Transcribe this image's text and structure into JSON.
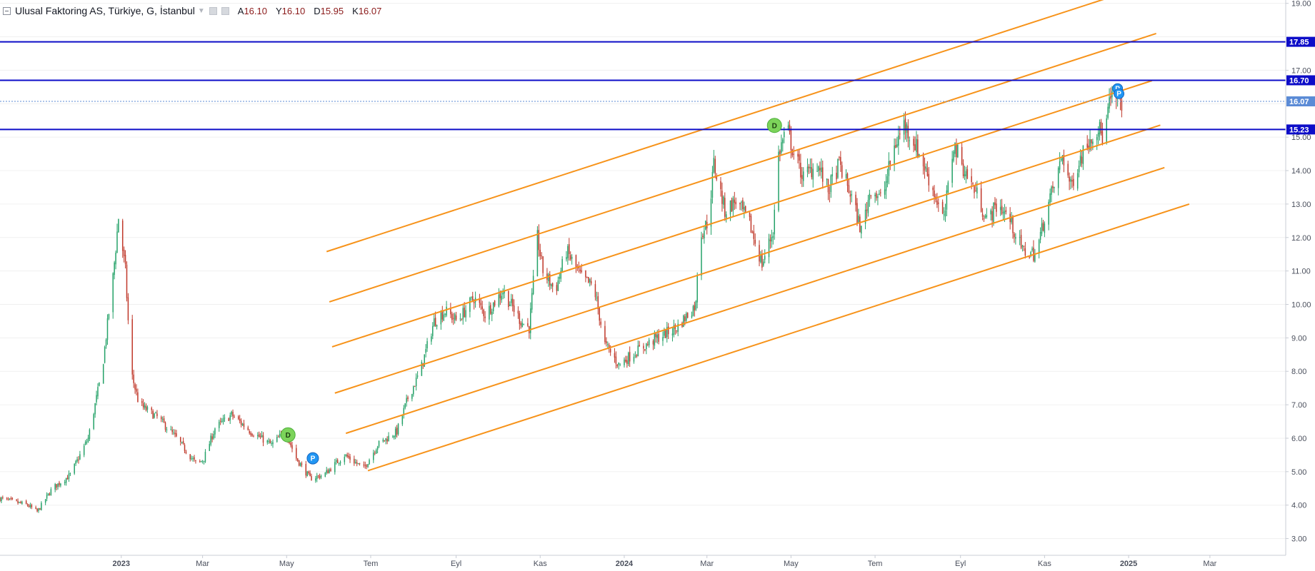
{
  "legend": {
    "symbol": "Ulusal Faktoring AS, Türkiye, G, İstanbul",
    "open_key": "A",
    "open": "16.10",
    "high_key": "Y",
    "high": "16.10",
    "low_key": "D",
    "low": "15.95",
    "close_key": "K",
    "close": "16.07"
  },
  "chart_data": {
    "type": "candlestick",
    "ylim": [
      2.5,
      19.1
    ],
    "y_ticks": [
      "3.00",
      "4.00",
      "5.00",
      "6.00",
      "7.00",
      "8.00",
      "9.00",
      "10.00",
      "11.00",
      "12.00",
      "13.00",
      "14.00",
      "15.00",
      "16.00",
      "17.00",
      "18.00",
      "19.00"
    ],
    "x_range": [
      "2022-10-05",
      "2025-04-25"
    ],
    "x_ticks": [
      {
        "date": "2023-01-01",
        "label": "2023"
      },
      {
        "date": "2023-03-01",
        "label": "Mar"
      },
      {
        "date": "2023-05-01",
        "label": "May"
      },
      {
        "date": "2023-07-01",
        "label": "Tem"
      },
      {
        "date": "2023-09-01",
        "label": "Eyl"
      },
      {
        "date": "2023-11-01",
        "label": "Kas"
      },
      {
        "date": "2024-01-01",
        "label": "2024"
      },
      {
        "date": "2024-03-01",
        "label": "Mar"
      },
      {
        "date": "2024-05-01",
        "label": "May"
      },
      {
        "date": "2024-07-01",
        "label": "Tem"
      },
      {
        "date": "2024-09-01",
        "label": "Eyl"
      },
      {
        "date": "2024-11-01",
        "label": "Kas"
      },
      {
        "date": "2025-01-01",
        "label": "2025"
      },
      {
        "date": "2025-03-01",
        "label": "Mar"
      }
    ],
    "price_path": [
      [
        "2022-10-05",
        4.2
      ],
      [
        "2022-10-25",
        4.0
      ],
      [
        "2022-11-01",
        3.8
      ],
      [
        "2022-11-12",
        4.5
      ],
      [
        "2022-11-25",
        4.9
      ],
      [
        "2022-12-08",
        6.0
      ],
      [
        "2022-12-18",
        8.0
      ],
      [
        "2022-12-26",
        10.8
      ],
      [
        "2022-12-30",
        12.6
      ],
      [
        "2023-01-04",
        11.0
      ],
      [
        "2023-01-08",
        8.0
      ],
      [
        "2023-01-14",
        7.0
      ],
      [
        "2023-01-28",
        6.6
      ],
      [
        "2023-02-10",
        6.0
      ],
      [
        "2023-02-25",
        5.2
      ],
      [
        "2023-03-02",
        5.4
      ],
      [
        "2023-03-10",
        6.3
      ],
      [
        "2023-03-22",
        6.7
      ],
      [
        "2023-04-05",
        6.2
      ],
      [
        "2023-04-20",
        5.8
      ],
      [
        "2023-04-30",
        6.2
      ],
      [
        "2023-05-08",
        5.4
      ],
      [
        "2023-05-18",
        4.8
      ],
      [
        "2023-05-28",
        4.9
      ],
      [
        "2023-06-12",
        5.5
      ],
      [
        "2023-06-26",
        5.1
      ],
      [
        "2023-07-06",
        5.8
      ],
      [
        "2023-07-20",
        6.2
      ],
      [
        "2023-07-28",
        7.2
      ],
      [
        "2023-08-06",
        8.0
      ],
      [
        "2023-08-16",
        9.5
      ],
      [
        "2023-08-24",
        9.8
      ],
      [
        "2023-09-02",
        9.5
      ],
      [
        "2023-09-14",
        10.2
      ],
      [
        "2023-09-22",
        9.7
      ],
      [
        "2023-10-05",
        10.4
      ],
      [
        "2023-10-18",
        9.5
      ],
      [
        "2023-10-24",
        9.3
      ],
      [
        "2023-10-30",
        12.0
      ],
      [
        "2023-11-03",
        11.0
      ],
      [
        "2023-11-12",
        10.4
      ],
      [
        "2023-11-20",
        11.6
      ],
      [
        "2023-12-01",
        10.8
      ],
      [
        "2023-12-10",
        10.5
      ],
      [
        "2023-12-18",
        8.8
      ],
      [
        "2023-12-28",
        8.2
      ],
      [
        "2024-01-10",
        8.6
      ],
      [
        "2024-01-25",
        9.0
      ],
      [
        "2024-02-08",
        9.3
      ],
      [
        "2024-02-18",
        9.8
      ],
      [
        "2024-02-22",
        10.0
      ],
      [
        "2024-02-24",
        12.0
      ],
      [
        "2024-03-02",
        12.5
      ],
      [
        "2024-03-06",
        14.2
      ],
      [
        "2024-03-14",
        12.8
      ],
      [
        "2024-03-22",
        13.1
      ],
      [
        "2024-04-01",
        12.4
      ],
      [
        "2024-04-10",
        11.2
      ],
      [
        "2024-04-18",
        12.2
      ],
      [
        "2024-04-22",
        14.5
      ],
      [
        "2024-04-28",
        15.3
      ],
      [
        "2024-05-03",
        14.5
      ],
      [
        "2024-05-10",
        13.8
      ],
      [
        "2024-05-20",
        14.2
      ],
      [
        "2024-05-28",
        13.4
      ],
      [
        "2024-06-05",
        14.2
      ],
      [
        "2024-06-14",
        13.2
      ],
      [
        "2024-06-21",
        12.2
      ],
      [
        "2024-06-28",
        13.5
      ],
      [
        "2024-07-06",
        13.1
      ],
      [
        "2024-07-14",
        14.6
      ],
      [
        "2024-07-22",
        15.4
      ],
      [
        "2024-07-30",
        14.8
      ],
      [
        "2024-08-06",
        14.1
      ],
      [
        "2024-08-14",
        13.2
      ],
      [
        "2024-08-20",
        12.5
      ],
      [
        "2024-08-27",
        14.8
      ],
      [
        "2024-09-04",
        14.0
      ],
      [
        "2024-09-14",
        13.2
      ],
      [
        "2024-09-20",
        12.5
      ],
      [
        "2024-09-28",
        13.0
      ],
      [
        "2024-10-06",
        12.6
      ],
      [
        "2024-10-16",
        11.6
      ],
      [
        "2024-10-26",
        11.5
      ],
      [
        "2024-11-02",
        12.8
      ],
      [
        "2024-11-10",
        13.8
      ],
      [
        "2024-11-14",
        14.5
      ],
      [
        "2024-11-20",
        13.5
      ],
      [
        "2024-11-26",
        14.3
      ],
      [
        "2024-12-04",
        15.0
      ],
      [
        "2024-12-10",
        15.3
      ],
      [
        "2024-12-14",
        14.9
      ],
      [
        "2024-12-18",
        16.0
      ],
      [
        "2024-12-22",
        16.2
      ],
      [
        "2024-12-26",
        16.1
      ],
      [
        "2024-12-28",
        16.07
      ]
    ],
    "horizontal_lines": [
      {
        "price": 17.85,
        "label": "17.85",
        "color": "#0d0dc8"
      },
      {
        "price": 16.7,
        "label": "16.70",
        "color": "#0d0dc8"
      },
      {
        "price": 15.23,
        "label": "15.23",
        "color": "#0d0dc8"
      }
    ],
    "last_price": {
      "price": 16.07,
      "label": "16.07",
      "color": "#5b8bd6"
    },
    "parallel_channel": {
      "color": "#f7931a",
      "base_start": [
        "2023-06-29",
        5.03
      ],
      "base_end": [
        "2025-02-14",
        13.0
      ],
      "offsets": [
        0,
        1.33,
        2.64,
        4.05,
        5.42,
        6.95
      ],
      "start_dates": [
        "2023-06-29",
        "2023-06-13",
        "2023-06-05",
        "2023-06-03",
        "2023-06-01",
        "2023-05-30"
      ],
      "end_dates": [
        "2025-02-14",
        "2025-01-27",
        "2025-01-24",
        "2025-01-18",
        "2025-01-21",
        "2025-01-07"
      ]
    },
    "markers": [
      {
        "date": "2023-05-02",
        "price": 6.1,
        "letter": "D",
        "fill": "#7cd35a",
        "stroke": "#4caf3a",
        "text": "#1d3d10",
        "r": 10
      },
      {
        "date": "2023-05-20",
        "price": 5.4,
        "letter": "P",
        "fill": "#2196f3",
        "stroke": "#1565c0",
        "text": "#ffffff",
        "r": 8
      },
      {
        "date": "2024-04-19",
        "price": 15.35,
        "letter": "D",
        "fill": "#7cd35a",
        "stroke": "#4caf3a",
        "text": "#1d3d10",
        "r": 10
      },
      {
        "date": "2024-12-24",
        "price": 16.45,
        "letter": "P",
        "fill": "#2196f3",
        "stroke": "#1565c0",
        "text": "#ffffff",
        "r": 7
      },
      {
        "date": "2024-12-25",
        "price": 16.3,
        "letter": "P",
        "fill": "#2196f3",
        "stroke": "#1565c0",
        "text": "#ffffff",
        "r": 7
      }
    ],
    "colors": {
      "up": "#26a269",
      "down": "#c0392b",
      "grid": "#f0f0f0",
      "axis": "#c8ccd4"
    }
  }
}
